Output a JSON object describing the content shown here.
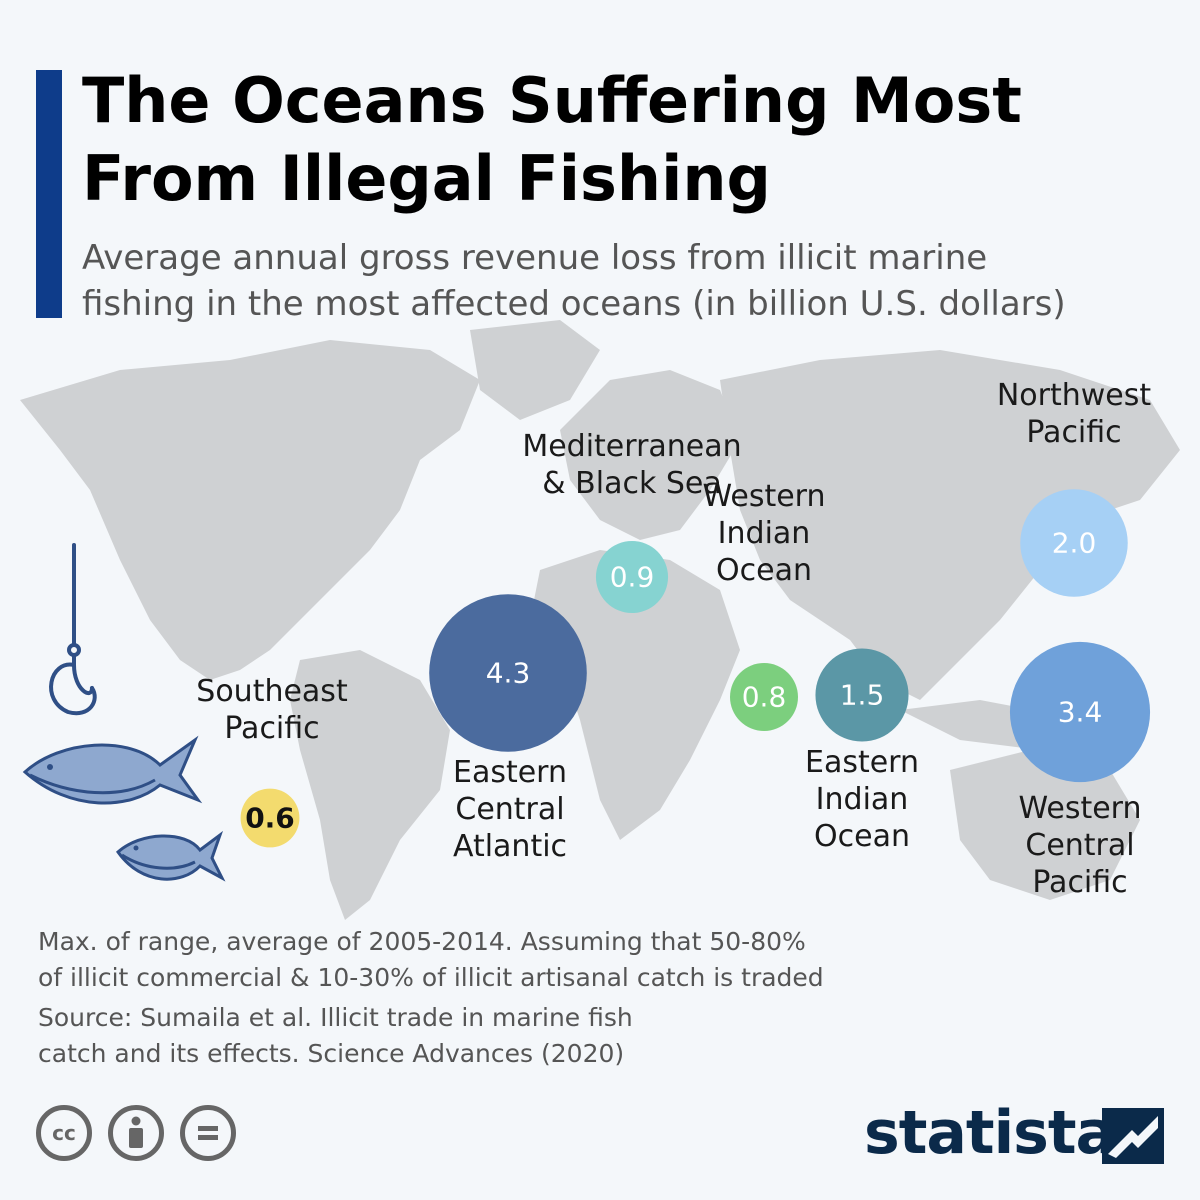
{
  "header": {
    "title_line1": "The Oceans Suffering Most",
    "title_line2": "From Illegal Fishing",
    "subtitle_line1": "Average annual gross revenue loss from illicit marine",
    "subtitle_line2": "fishing in the most affected oceans (in billion U.S. dollars)"
  },
  "chart_data": {
    "type": "bubble-map",
    "unit": "billion U.S. dollars",
    "series": [
      {
        "region": [
          "Southeast",
          "Pacific"
        ],
        "value": 0.6,
        "color": "#f3db6e"
      },
      {
        "region": [
          "Eastern",
          "Central",
          "Atlantic"
        ],
        "value": 4.3,
        "color": "#4b6b9e"
      },
      {
        "region": [
          "Mediterranean",
          "& Black Sea"
        ],
        "value": 0.9,
        "color": "#86d3d1"
      },
      {
        "region": [
          "Western",
          "Indian",
          "Ocean"
        ],
        "value": 0.8,
        "color": "#7ccf7e"
      },
      {
        "region": [
          "Eastern",
          "Indian",
          "Ocean"
        ],
        "value": 1.5,
        "color": "#5b97a6"
      },
      {
        "region": [
          "Northwest",
          "Pacific"
        ],
        "value": 2.0,
        "color": "#a6d0f5"
      },
      {
        "region": [
          "Western",
          "Central",
          "Pacific"
        ],
        "value": 3.4,
        "color": "#6fa1da"
      }
    ]
  },
  "notes": {
    "line1": "Max. of range, average of 2005-2014. Assuming that 50-80%",
    "line2": "of illicit commercial & 10-30% of illicit artisanal catch is traded",
    "source1": "Source: Sumaila et al. Illicit trade in marine fish",
    "source2": "catch and its effects. Science Advances (2020)"
  },
  "license_icons": [
    "cc-icon",
    "attribution-icon",
    "no-derivatives-icon"
  ],
  "brand": {
    "name": "statista"
  }
}
